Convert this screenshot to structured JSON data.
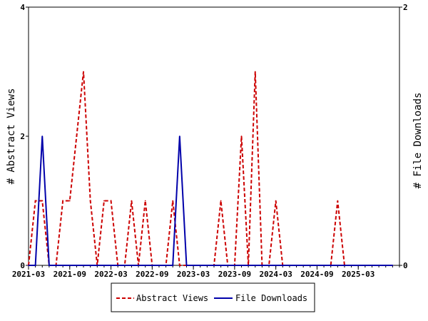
{
  "chart_data": {
    "type": "line",
    "x_tick_labels": [
      "2021-03",
      "2021-09",
      "2022-03",
      "2022-09",
      "2023-03",
      "2023-09",
      "2024-03",
      "2024-09",
      "2025-03"
    ],
    "y_left_ticks": [
      "0",
      "2",
      "4"
    ],
    "y_right_ticks": [
      "0",
      "2"
    ],
    "ylabel_left": "# Abstract Views",
    "ylabel_right": "# File Downloads",
    "ylim_left": [
      0,
      4
    ],
    "ylim_right": [
      0,
      2
    ],
    "x_count": 54,
    "legend_position": "bottom-center",
    "grid": false,
    "series": [
      {
        "name": "Abstract Views",
        "axis": "left",
        "color": "#cc0000",
        "style": "dashed",
        "values": [
          0,
          1,
          1,
          0,
          0,
          1,
          1,
          2,
          3,
          1,
          0,
          1,
          1,
          0,
          0,
          1,
          0,
          1,
          0,
          0,
          0,
          1,
          0,
          0,
          0,
          0,
          0,
          0,
          1,
          0,
          0,
          2,
          0,
          3,
          0,
          0,
          1,
          0,
          0,
          0,
          0,
          0,
          0,
          0,
          0,
          1,
          0,
          0,
          0,
          0,
          0,
          0,
          0,
          0
        ]
      },
      {
        "name": "File Downloads",
        "axis": "right",
        "color": "#0000aa",
        "style": "solid",
        "values": [
          0,
          0,
          1,
          0,
          0,
          0,
          0,
          0,
          0,
          0,
          0,
          0,
          0,
          0,
          0,
          0,
          0,
          0,
          0,
          0,
          0,
          0,
          1,
          0,
          0,
          0,
          0,
          0,
          0,
          0,
          0,
          0,
          0,
          0,
          0,
          0,
          0,
          0,
          0,
          0,
          0,
          0,
          0,
          0,
          0,
          0,
          0,
          0,
          0,
          0,
          0,
          0,
          0,
          0
        ]
      }
    ]
  }
}
